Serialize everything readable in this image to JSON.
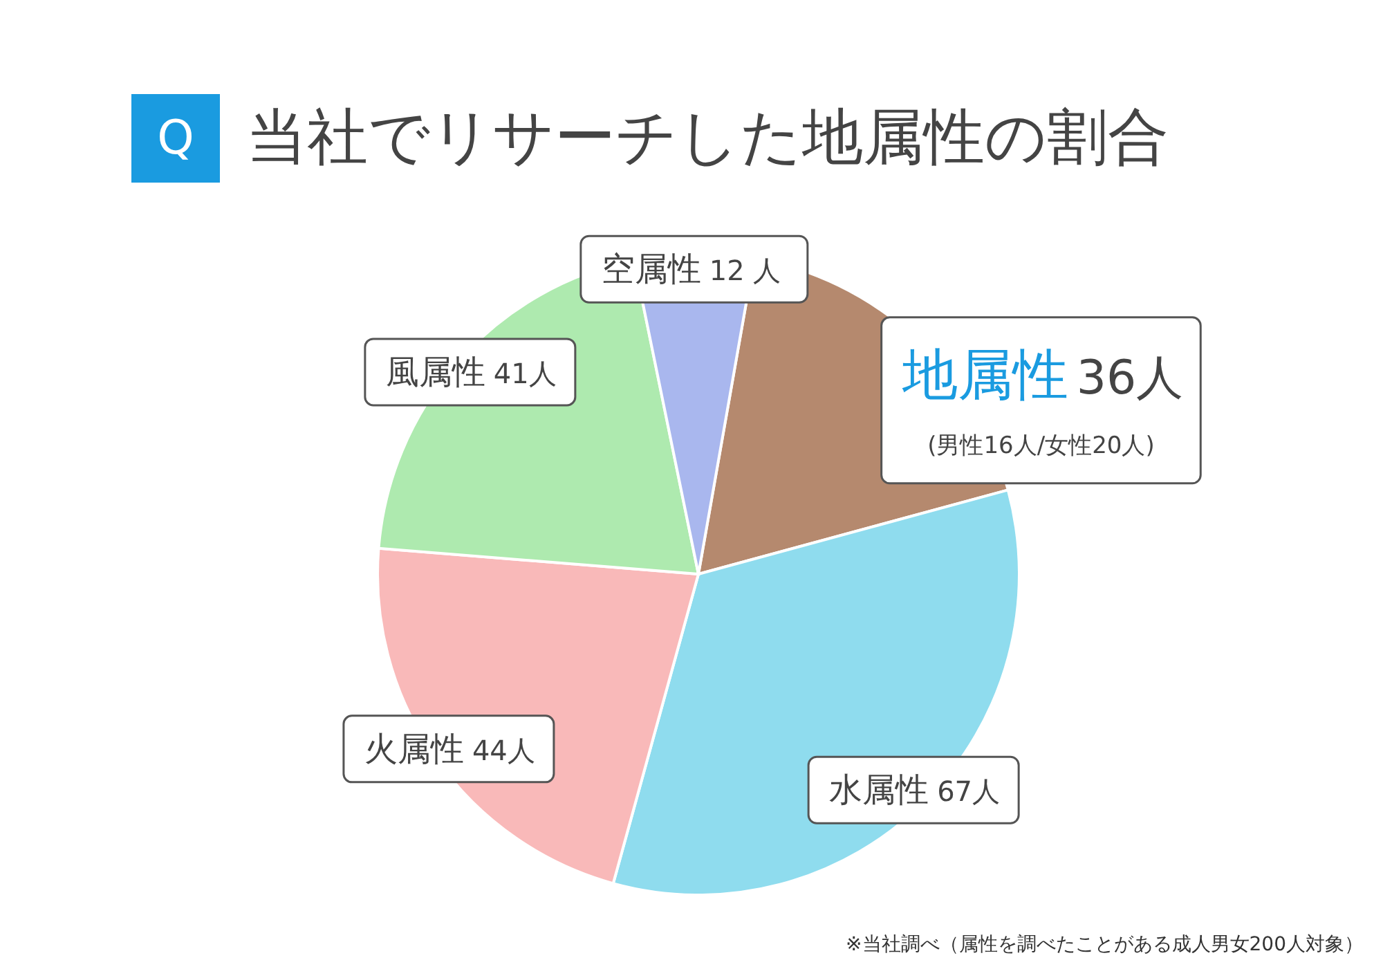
{
  "chart_data": {
    "type": "pie",
    "title": "当社でリサーチした地属性の割合",
    "categories": [
      "地属性",
      "水属性",
      "火属性",
      "風属性",
      "空属性"
    ],
    "values": [
      36,
      67,
      44,
      41,
      12
    ],
    "value_labels": [
      "36人",
      "67人",
      "44人",
      "41人",
      "12 人"
    ],
    "colors": [
      "#b5896e",
      "#8fdcee",
      "#f9b9b9",
      "#aeeaaf",
      "#a9b7ee"
    ],
    "annotations": [
      "Q",
      "(男性16人/女性20人)",
      "※当社調べ（属性を調べたことがある成人男女200人対象）"
    ],
    "legend": false
  }
}
